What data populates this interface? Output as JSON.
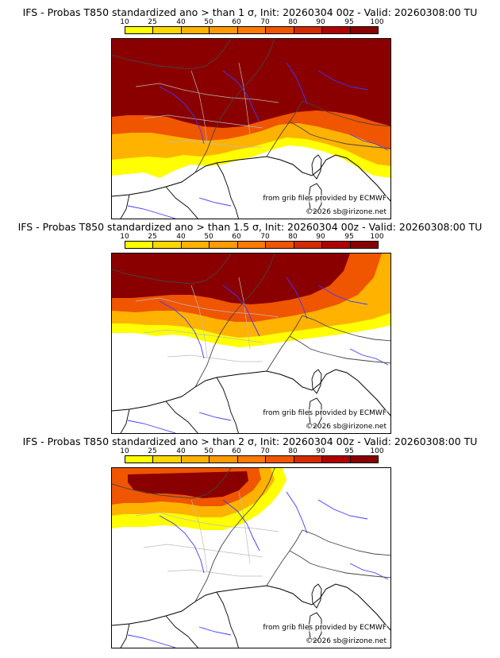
{
  "colorbar": {
    "ticks": [
      "10",
      "25",
      "40",
      "50",
      "60",
      "70",
      "80",
      "90",
      "95",
      "100"
    ],
    "colors": [
      "#ffff00",
      "#ffd700",
      "#ffb300",
      "#ff9a00",
      "#ff7a00",
      "#f05500",
      "#d42a00",
      "#b00000",
      "#8a0000"
    ]
  },
  "panels": [
    {
      "title": "IFS - Probas T850  standardized ano > than 1 σ, Init: 20260304 00z - Valid: 20260308:00 TU",
      "source_note": "from grib files provided by ECMWF",
      "copyright": "©2026 sb@irizone.net",
      "extent_level": 3
    },
    {
      "title": "IFS - Probas T850  standardized ano > than 1.5 σ, Init: 20260304 00z - Valid: 20260308:00 TU",
      "source_note": "from grib files provided by ECMWF",
      "copyright": "©2026 sb@irizone.net",
      "extent_level": 2
    },
    {
      "title": "IFS - Probas T850  standardized ano > than 2 σ, Init: 20260304 00z - Valid: 20260308:00 TU",
      "source_note": "from grib files provided by ECMWF",
      "copyright": "©2026 sb@irizone.net",
      "extent_level": 1
    }
  ]
}
